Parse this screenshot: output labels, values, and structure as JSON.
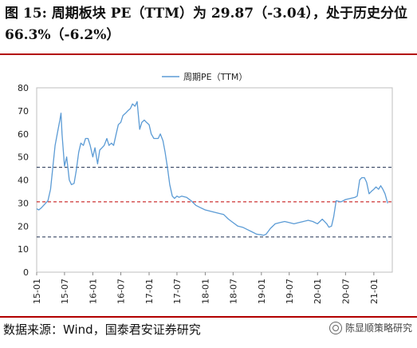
{
  "figure_title": "图 15:  周期板块 PE（TTM）为 29.87（-3.04），处于历史分位 66.3%（-6.2%）",
  "source_note": "数据来源：Wind，国泰君安证券研究",
  "watermark_text": "陈显顺策略研究",
  "colors": {
    "series": "#5b9bd5",
    "rule": "#b20000",
    "upper_band": "#1f2f4f",
    "mean_line": "#c00000",
    "lower_band": "#1f2f4f"
  },
  "chart_data": {
    "type": "line",
    "title": "",
    "xlabel": "",
    "ylabel": "",
    "ylim": [
      0,
      80
    ],
    "yticks": [
      0,
      10,
      20,
      30,
      40,
      50,
      60,
      70,
      80
    ],
    "xticks": [
      "15-01",
      "15-07",
      "16-01",
      "16-07",
      "17-01",
      "17-07",
      "18-01",
      "18-07",
      "19-01",
      "19-07",
      "20-01",
      "20-07",
      "21-01"
    ],
    "legend_position": "top-left",
    "grid": false,
    "reference_lines": [
      {
        "value": 45.5,
        "style": "dashed",
        "color": "#1f2f4f"
      },
      {
        "value": 30.5,
        "style": "dashed",
        "color": "#c00000"
      },
      {
        "value": 15.3,
        "style": "dashed",
        "color": "#1f2f4f"
      }
    ],
    "series": [
      {
        "name": "周期PE（TTM）",
        "x": [
          "2015-01-01",
          "2015-01-15",
          "2015-02-01",
          "2015-02-15",
          "2015-03-01",
          "2015-03-15",
          "2015-04-01",
          "2015-04-15",
          "2015-05-01",
          "2015-05-15",
          "2015-06-01",
          "2015-06-08",
          "2015-06-15",
          "2015-07-01",
          "2015-07-15",
          "2015-08-01",
          "2015-08-15",
          "2015-09-01",
          "2015-09-15",
          "2015-10-01",
          "2015-10-15",
          "2015-11-01",
          "2015-11-15",
          "2015-12-01",
          "2015-12-15",
          "2016-01-01",
          "2016-01-15",
          "2016-02-01",
          "2016-02-15",
          "2016-03-01",
          "2016-03-15",
          "2016-04-01",
          "2016-04-15",
          "2016-05-01",
          "2016-05-15",
          "2016-06-01",
          "2016-06-15",
          "2016-07-01",
          "2016-07-15",
          "2016-08-01",
          "2016-08-15",
          "2016-09-01",
          "2016-09-15",
          "2016-10-01",
          "2016-10-15",
          "2016-11-01",
          "2016-11-15",
          "2016-12-01",
          "2016-12-15",
          "2017-01-01",
          "2017-01-15",
          "2017-02-01",
          "2017-02-15",
          "2017-03-01",
          "2017-03-15",
          "2017-04-01",
          "2017-04-15",
          "2017-05-01",
          "2017-05-15",
          "2017-06-01",
          "2017-06-15",
          "2017-07-01",
          "2017-07-15",
          "2017-08-01",
          "2017-09-01",
          "2017-10-01",
          "2017-11-01",
          "2017-12-01",
          "2018-01-01",
          "2018-02-01",
          "2018-03-01",
          "2018-04-01",
          "2018-05-01",
          "2018-06-01",
          "2018-07-01",
          "2018-08-01",
          "2018-09-01",
          "2018-10-01",
          "2018-11-01",
          "2018-12-01",
          "2019-01-01",
          "2019-01-15",
          "2019-02-01",
          "2019-03-01",
          "2019-04-01",
          "2019-05-01",
          "2019-06-01",
          "2019-07-01",
          "2019-08-01",
          "2019-09-01",
          "2019-10-01",
          "2019-11-01",
          "2019-12-01",
          "2020-01-01",
          "2020-02-01",
          "2020-03-01",
          "2020-03-15",
          "2020-04-01",
          "2020-04-15",
          "2020-05-01",
          "2020-06-01",
          "2020-07-01",
          "2020-08-01",
          "2020-09-01",
          "2020-09-15",
          "2020-10-01",
          "2020-10-15",
          "2020-11-01",
          "2020-11-15",
          "2020-12-01",
          "2020-12-15",
          "2021-01-01",
          "2021-01-15",
          "2021-02-01",
          "2021-02-15",
          "2021-03-01",
          "2021-03-15",
          "2021-04-01"
        ],
        "values": [
          27.5,
          27.0,
          28.0,
          29.0,
          30.0,
          31.0,
          36.0,
          45.0,
          55.0,
          60.0,
          66.0,
          69.0,
          60.0,
          46.0,
          50.0,
          40.0,
          38.0,
          38.5,
          44.0,
          52.0,
          56.0,
          55.0,
          58.0,
          58.0,
          55.0,
          50.0,
          54.0,
          47.0,
          53.0,
          54.0,
          55.0,
          58.0,
          55.0,
          56.0,
          55.0,
          60.0,
          64.0,
          65.0,
          68.0,
          69.0,
          70.0,
          71.0,
          73.0,
          72.0,
          74.0,
          62.0,
          65.0,
          66.0,
          65.0,
          64.0,
          60.0,
          58.0,
          58.0,
          58.0,
          60.0,
          57.0,
          52.0,
          45.0,
          38.0,
          33.0,
          32.0,
          33.0,
          32.5,
          33.0,
          32.5,
          31.0,
          29.0,
          28.0,
          27.0,
          26.5,
          26.0,
          25.5,
          25.0,
          23.0,
          21.5,
          20.0,
          19.5,
          18.5,
          17.5,
          16.5,
          16.2,
          16.0,
          16.5,
          19.0,
          21.0,
          21.5,
          22.0,
          21.5,
          21.0,
          21.5,
          22.0,
          22.5,
          22.0,
          21.0,
          23.0,
          21.0,
          19.5,
          20.0,
          24.0,
          31.0,
          30.5,
          31.5,
          32.0,
          32.5,
          33.0,
          40.0,
          41.0,
          41.0,
          39.0,
          34.0,
          35.0,
          36.0,
          37.0,
          36.0,
          37.5,
          36.0,
          34.0,
          29.9
        ]
      }
    ]
  }
}
